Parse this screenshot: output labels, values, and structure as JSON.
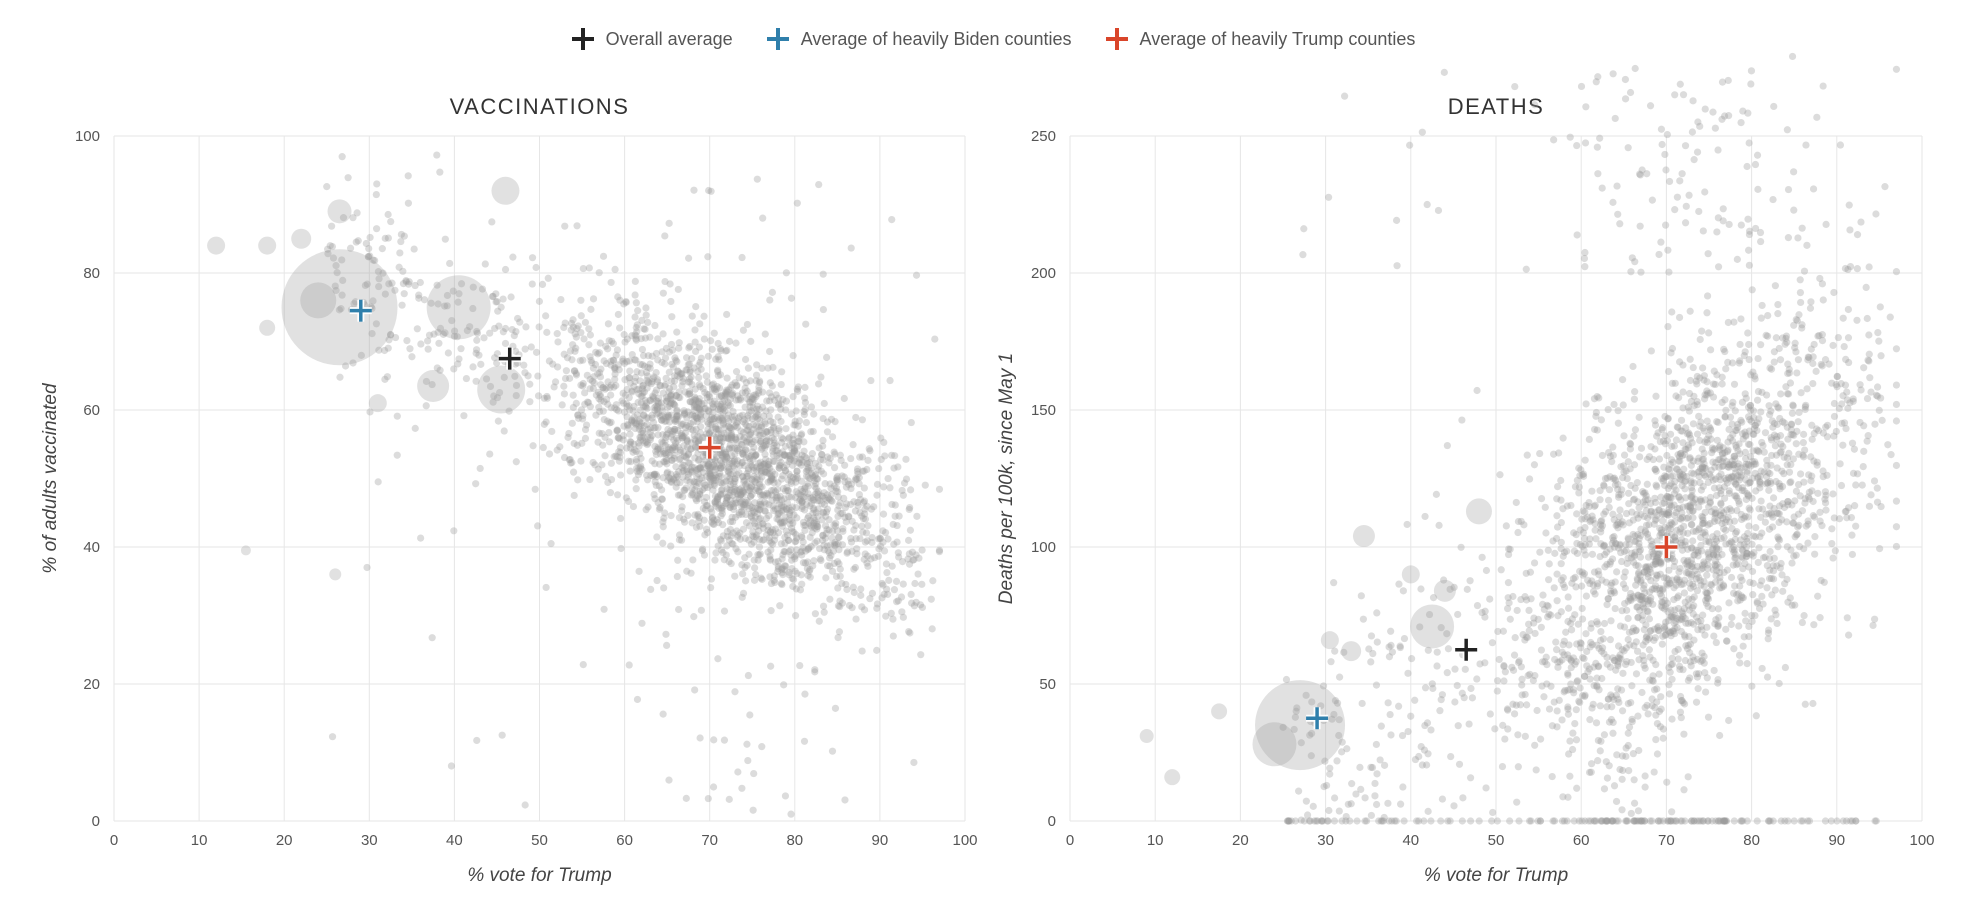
{
  "legend": {
    "overall_label": "Overall average",
    "biden_label": "Average of heavily Biden counties",
    "trump_label": "Average of heavily Trump counties"
  },
  "colors": {
    "overall": "#222222",
    "biden": "#2f7fab",
    "trump": "#d9452a",
    "points": "#9a9a9a",
    "grid": "#e6e6e6"
  },
  "chart_data": [
    {
      "type": "scatter",
      "title": "VACCINATIONS",
      "xlabel": "% vote for Trump",
      "ylabel": "% of adults vaccinated",
      "xlim": [
        0,
        100
      ],
      "ylim": [
        0,
        100
      ],
      "xticks": [
        0,
        10,
        20,
        30,
        40,
        50,
        60,
        70,
        80,
        90,
        100
      ],
      "yticks": [
        0,
        20,
        40,
        60,
        80,
        100
      ],
      "grid": true,
      "markers": [
        {
          "name": "Overall average",
          "x": 46.5,
          "y": 67.5,
          "color": "overall"
        },
        {
          "name": "Average of heavily Biden counties",
          "x": 29,
          "y": 74.5,
          "color": "biden"
        },
        {
          "name": "Average of heavily Trump counties",
          "x": 70,
          "y": 54.5,
          "color": "trump"
        }
      ],
      "highlighted_points": [
        {
          "x": 26.5,
          "y": 75,
          "r": 58
        },
        {
          "x": 40.5,
          "y": 75,
          "r": 32
        },
        {
          "x": 45.5,
          "y": 63,
          "r": 24
        },
        {
          "x": 24,
          "y": 76,
          "r": 18
        },
        {
          "x": 26.5,
          "y": 89,
          "r": 12
        },
        {
          "x": 46,
          "y": 92,
          "r": 14
        },
        {
          "x": 37.5,
          "y": 63.5,
          "r": 16
        },
        {
          "x": 31,
          "y": 61,
          "r": 9
        },
        {
          "x": 12,
          "y": 84,
          "r": 9
        },
        {
          "x": 18,
          "y": 84,
          "r": 9
        },
        {
          "x": 22,
          "y": 85,
          "r": 10
        },
        {
          "x": 18,
          "y": 72,
          "r": 8
        },
        {
          "x": 26,
          "y": 36,
          "r": 6
        },
        {
          "x": 15.5,
          "y": 39.5,
          "r": 5
        }
      ]
    },
    {
      "type": "scatter",
      "title": "DEATHS",
      "xlabel": "% vote for Trump",
      "ylabel": "Deaths per 100k, since May 1",
      "xlim": [
        0,
        100
      ],
      "ylim": [
        0,
        250
      ],
      "xticks": [
        0,
        10,
        20,
        30,
        40,
        50,
        60,
        70,
        80,
        90,
        100
      ],
      "yticks": [
        0,
        50,
        100,
        150,
        200,
        250
      ],
      "grid": true,
      "markers": [
        {
          "name": "Overall average",
          "x": 46.5,
          "y": 62.5,
          "color": "overall"
        },
        {
          "name": "Average of heavily Biden counties",
          "x": 29,
          "y": 37.5,
          "color": "biden"
        },
        {
          "name": "Average of heavily Trump counties",
          "x": 70,
          "y": 100,
          "color": "trump"
        }
      ],
      "highlighted_points": [
        {
          "x": 27,
          "y": 35,
          "r": 45
        },
        {
          "x": 42.5,
          "y": 71,
          "r": 22
        },
        {
          "x": 24,
          "y": 28,
          "r": 22
        },
        {
          "x": 48,
          "y": 113,
          "r": 13
        },
        {
          "x": 34.5,
          "y": 104,
          "r": 11
        },
        {
          "x": 44,
          "y": 84,
          "r": 11
        },
        {
          "x": 33,
          "y": 62,
          "r": 10
        },
        {
          "x": 17.5,
          "y": 40,
          "r": 8
        },
        {
          "x": 12,
          "y": 16,
          "r": 8
        },
        {
          "x": 9,
          "y": 31,
          "r": 7
        },
        {
          "x": 40,
          "y": 90,
          "r": 9
        },
        {
          "x": 30.5,
          "y": 66,
          "r": 9
        }
      ]
    }
  ]
}
